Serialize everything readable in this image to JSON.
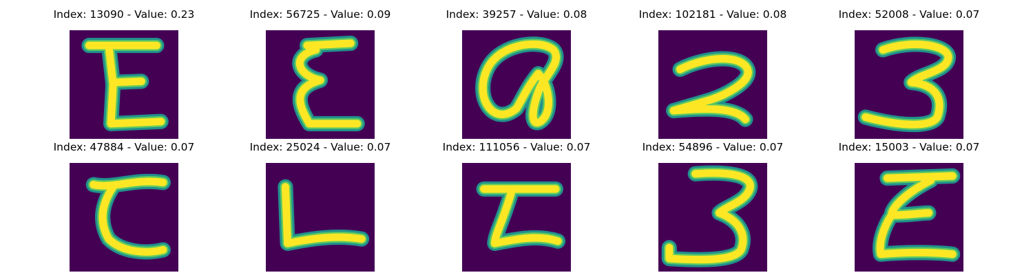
{
  "colors": {
    "background": "#440154",
    "stroke_edge": "#21918c",
    "stroke_mid": "#5ec962",
    "stroke_core": "#fde725"
  },
  "panels": [
    {
      "index": "13090",
      "value": "0.23",
      "glyph": "E-like letter",
      "title": "Index: 13090 - Value: 0.23"
    },
    {
      "index": "56725",
      "value": "0.09",
      "glyph": "E-like letter",
      "title": "Index: 56725 - Value: 0.09"
    },
    {
      "index": "39257",
      "value": "0.08",
      "glyph": "loop character",
      "title": "Index: 39257 - Value: 0.08"
    },
    {
      "index": "102181",
      "value": "0.08",
      "glyph": "digit 2",
      "title": "Index: 102181 - Value: 0.08"
    },
    {
      "index": "52008",
      "value": "0.07",
      "glyph": "digit 3",
      "title": "Index: 52008 - Value: 0.07"
    },
    {
      "index": "47884",
      "value": "0.07",
      "glyph": "E-like letter",
      "title": "Index: 47884 - Value: 0.07"
    },
    {
      "index": "25024",
      "value": "0.07",
      "glyph": "letter L",
      "title": "Index: 25024 - Value: 0.07"
    },
    {
      "index": "111056",
      "value": "0.07",
      "glyph": "E-like letter",
      "title": "Index: 111056 - Value: 0.07"
    },
    {
      "index": "54896",
      "value": "0.07",
      "glyph": "digit 3",
      "title": "Index: 54896 - Value: 0.07"
    },
    {
      "index": "15003",
      "value": "0.07",
      "glyph": "E-like letter",
      "title": "Index: 15003 - Value: 0.07"
    }
  ]
}
